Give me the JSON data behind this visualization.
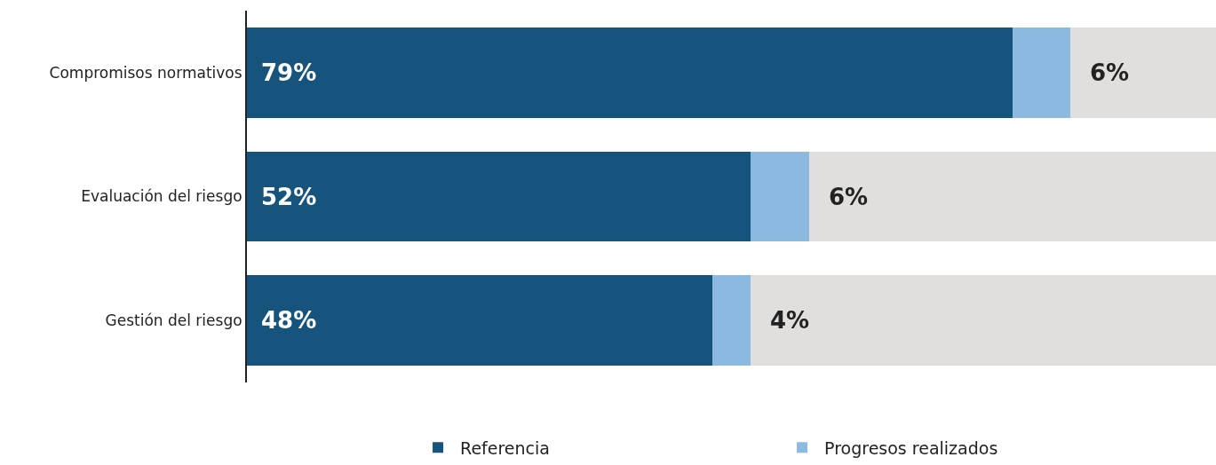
{
  "chart_data": {
    "type": "bar",
    "orientation": "horizontal",
    "stacked": true,
    "categories": [
      "Compromisos normativos",
      "Evaluación del riesgo",
      "Gestión del riesgo"
    ],
    "series": [
      {
        "name": "Referencia",
        "color": "#16547e",
        "values": [
          79,
          52,
          48
        ],
        "value_labels": [
          "79%",
          "52%",
          "48%"
        ]
      },
      {
        "name": "Progresos realizados",
        "color": "#8bb9e0",
        "values": [
          6,
          6,
          4
        ],
        "value_labels": [
          "6%",
          "6%",
          "4%"
        ]
      },
      {
        "color": "#e0dfdd",
        "values": [
          15,
          42,
          48
        ]
      }
    ],
    "xlim": [
      0,
      100
    ],
    "tick_labels": "y",
    "legend": "bottom"
  }
}
